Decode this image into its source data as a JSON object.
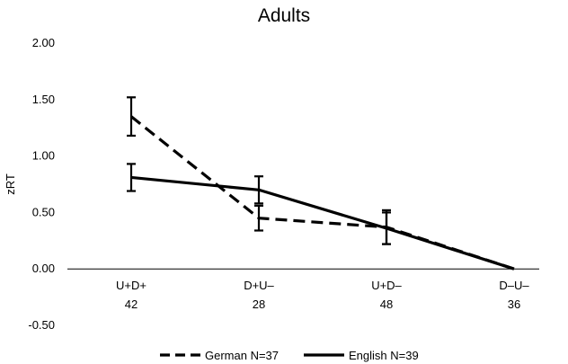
{
  "chart_data": {
    "type": "line",
    "title": "Adults",
    "ylabel": "zRT",
    "xlabel": "",
    "ylim": [
      -0.5,
      2.0
    ],
    "yticks": [
      "2.00",
      "1.50",
      "1.00",
      "0.50",
      "0.00",
      "-0.50"
    ],
    "yticks_values": [
      2.0,
      1.5,
      1.0,
      0.5,
      0.0,
      -0.5
    ],
    "categories": [
      {
        "label": "U+D+",
        "n": "42"
      },
      {
        "label": "D+U–",
        "n": "28"
      },
      {
        "label": "U+D–",
        "n": "48"
      },
      {
        "label": "D–U–",
        "n": "36"
      }
    ],
    "series": [
      {
        "name": "German N=37",
        "line_style": "dashed",
        "color": "#000000",
        "values": [
          1.35,
          0.45,
          0.37,
          0.0
        ],
        "error": [
          0.17,
          0.11,
          0.15,
          null
        ]
      },
      {
        "name": "English N=39",
        "line_style": "solid",
        "color": "#000000",
        "values": [
          0.81,
          0.7,
          0.36,
          0.0
        ],
        "error": [
          0.12,
          0.12,
          0.14,
          null
        ]
      }
    ],
    "grid": false,
    "legend_position": "bottom"
  }
}
